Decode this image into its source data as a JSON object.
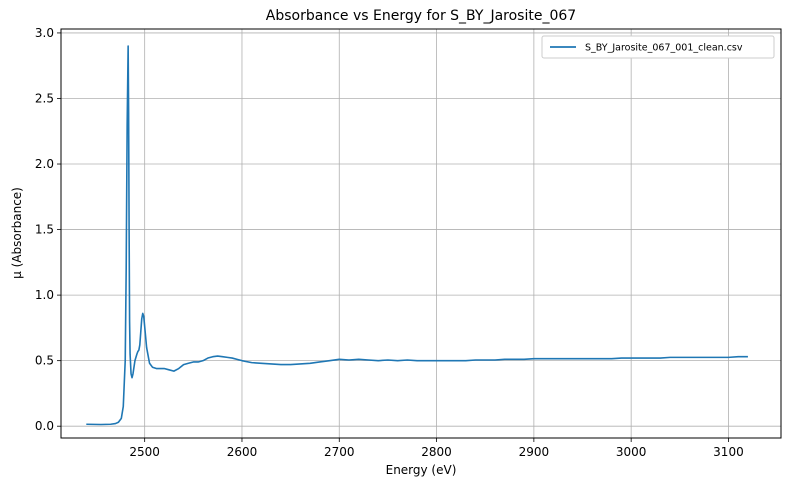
{
  "chart_data": {
    "type": "line",
    "title": "Absorbance vs Energy for S_BY_Jarosite_067",
    "xlabel": "Energy (eV)",
    "ylabel": "μ (Absorbance)",
    "xlim": [
      2414,
      3154
    ],
    "ylim": [
      -0.09,
      3.03
    ],
    "xticks": [
      2500,
      2600,
      2700,
      2800,
      2900,
      3000,
      3100
    ],
    "yticks": [
      0.0,
      0.5,
      1.0,
      1.5,
      2.0,
      2.5,
      3.0
    ],
    "xtick_labels": [
      "2500",
      "2600",
      "2700",
      "2800",
      "2900",
      "3000",
      "3100"
    ],
    "ytick_labels": [
      "0.0",
      "0.5",
      "1.0",
      "1.5",
      "2.0",
      "2.5",
      "3.0"
    ],
    "grid": true,
    "legend_position": "top-right",
    "color": "#1f77b4",
    "series": [
      {
        "name": "S_BY_Jarosite_067_001_clean.csv",
        "x": [
          2440,
          2455,
          2465,
          2470,
          2473,
          2476,
          2478,
          2480,
          2481,
          2482,
          2483,
          2483.5,
          2484,
          2484.5,
          2485,
          2486,
          2487,
          2488,
          2490,
          2492,
          2493,
          2494,
          2495,
          2496,
          2497,
          2498,
          2499,
          2500,
          2502,
          2505,
          2508,
          2512,
          2515,
          2520,
          2525,
          2530,
          2535,
          2540,
          2545,
          2550,
          2555,
          2560,
          2565,
          2570,
          2575,
          2580,
          2585,
          2590,
          2595,
          2600,
          2610,
          2620,
          2630,
          2640,
          2650,
          2660,
          2670,
          2680,
          2690,
          2700,
          2710,
          2720,
          2730,
          2740,
          2750,
          2760,
          2770,
          2780,
          2790,
          2800,
          2810,
          2820,
          2830,
          2840,
          2850,
          2860,
          2870,
          2880,
          2890,
          2900,
          2910,
          2920,
          2930,
          2940,
          2950,
          2960,
          2970,
          2980,
          2990,
          3000,
          3010,
          3020,
          3030,
          3040,
          3050,
          3060,
          3070,
          3080,
          3090,
          3100,
          3110,
          3120
        ],
        "y": [
          0.015,
          0.013,
          0.015,
          0.02,
          0.03,
          0.06,
          0.15,
          0.5,
          1.2,
          2.3,
          2.9,
          2.4,
          1.5,
          0.8,
          0.55,
          0.4,
          0.37,
          0.4,
          0.5,
          0.55,
          0.57,
          0.58,
          0.62,
          0.72,
          0.82,
          0.86,
          0.84,
          0.76,
          0.6,
          0.48,
          0.45,
          0.44,
          0.44,
          0.44,
          0.43,
          0.42,
          0.44,
          0.47,
          0.48,
          0.49,
          0.49,
          0.5,
          0.52,
          0.53,
          0.535,
          0.53,
          0.525,
          0.52,
          0.51,
          0.5,
          0.485,
          0.48,
          0.475,
          0.47,
          0.47,
          0.475,
          0.48,
          0.49,
          0.5,
          0.51,
          0.505,
          0.51,
          0.505,
          0.5,
          0.505,
          0.5,
          0.505,
          0.5,
          0.5,
          0.5,
          0.5,
          0.5,
          0.5,
          0.505,
          0.505,
          0.505,
          0.51,
          0.51,
          0.51,
          0.515,
          0.515,
          0.515,
          0.515,
          0.515,
          0.515,
          0.515,
          0.515,
          0.515,
          0.52,
          0.52,
          0.52,
          0.52,
          0.52,
          0.525,
          0.525,
          0.525,
          0.525,
          0.525,
          0.525,
          0.525,
          0.53,
          0.53
        ]
      }
    ]
  }
}
